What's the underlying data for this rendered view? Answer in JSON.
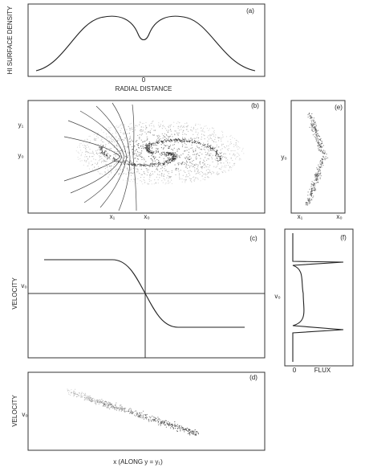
{
  "panels": {
    "a": {
      "label": "(a)",
      "y_axis": "HI SURFACE DENSITY",
      "origin": "0",
      "x_axis": "RADIAL DISTANCE"
    },
    "b": {
      "label": "(b)",
      "y1": "y₁",
      "y0": "y₀",
      "x1": "x₁",
      "x0": "x₀"
    },
    "e": {
      "label": "(e)",
      "y0": "y₀",
      "x1": "x₁",
      "x0": "x₀"
    },
    "c": {
      "label": "(c)",
      "y_axis": "VELOCITY",
      "v0": "v₀"
    },
    "f": {
      "label": "(f)",
      "v0": "v₀",
      "origin": "0",
      "x_axis": "FLUX"
    },
    "d": {
      "label": "(d)",
      "y_axis": "VELOCITY",
      "v0": "v₀",
      "x_axis": "x (ALONG y = y₁)"
    }
  }
}
